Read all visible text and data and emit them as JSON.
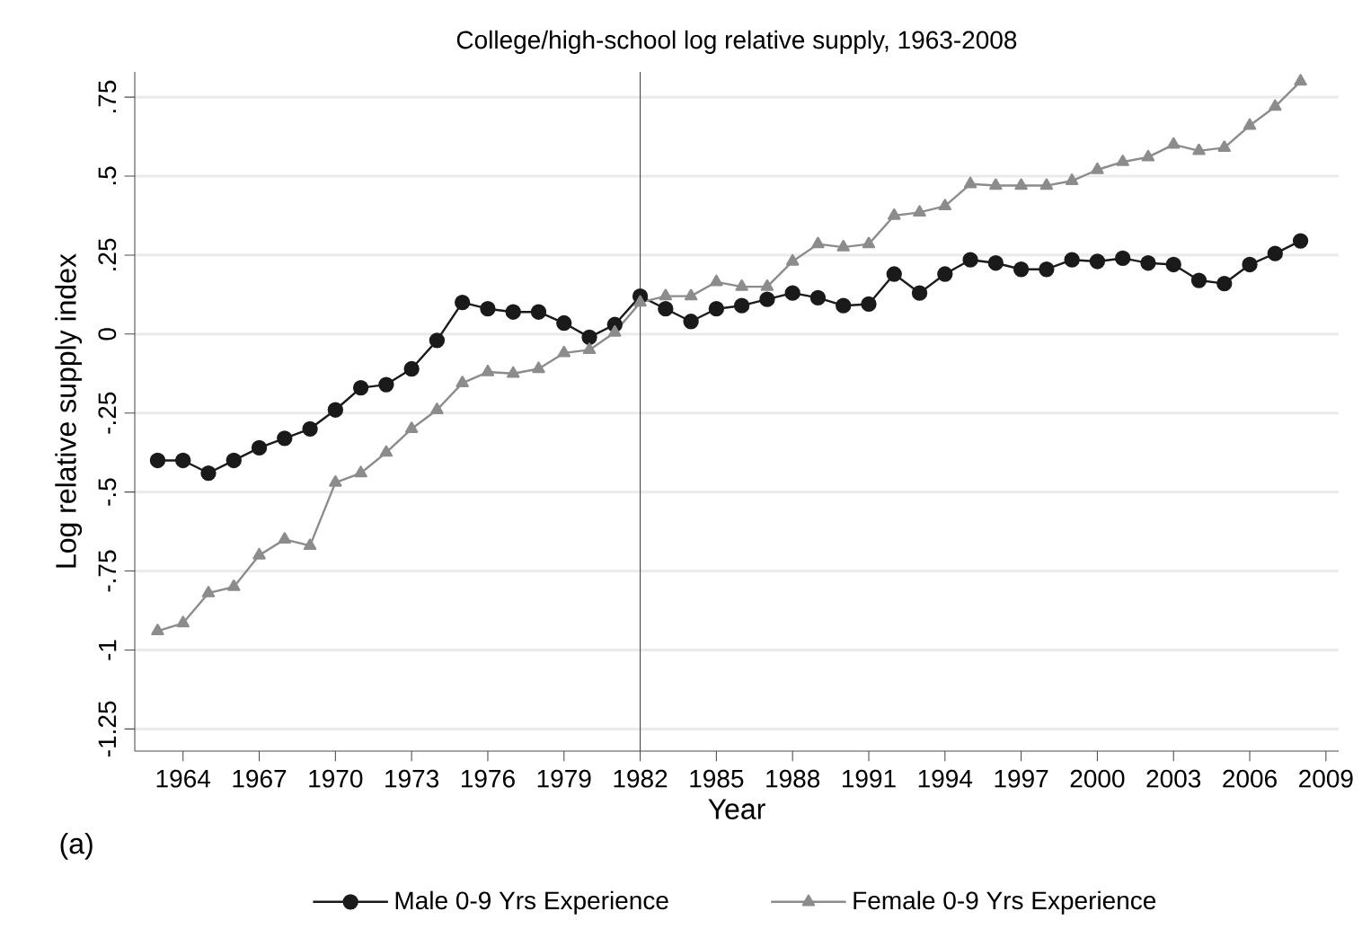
{
  "chart_data": {
    "type": "line",
    "title": "College/high-school log relative supply, 1963-2008",
    "xlabel": "Year",
    "ylabel": "Log relative supply index",
    "annotations": [
      "(a)"
    ],
    "x": [
      1963,
      1964,
      1965,
      1966,
      1967,
      1968,
      1969,
      1970,
      1971,
      1972,
      1973,
      1974,
      1975,
      1976,
      1977,
      1978,
      1979,
      1980,
      1981,
      1982,
      1983,
      1984,
      1985,
      1986,
      1987,
      1988,
      1989,
      1990,
      1991,
      1992,
      1993,
      1994,
      1995,
      1996,
      1997,
      1998,
      1999,
      2000,
      2001,
      2002,
      2003,
      2004,
      2005,
      2006,
      2007,
      2008
    ],
    "series": [
      {
        "name": "Male 0-9 Yrs Experience",
        "color": "#1a1a1a",
        "marker": "circle",
        "values": [
          -0.4,
          -0.4,
          -0.44,
          -0.4,
          -0.36,
          -0.33,
          -0.3,
          -0.24,
          -0.17,
          -0.16,
          -0.11,
          -0.02,
          0.1,
          0.08,
          0.07,
          0.07,
          0.035,
          -0.01,
          0.03,
          0.12,
          0.08,
          0.04,
          0.08,
          0.09,
          0.11,
          0.13,
          0.115,
          0.09,
          0.095,
          0.19,
          0.13,
          0.19,
          0.235,
          0.225,
          0.205,
          0.205,
          0.235,
          0.23,
          0.24,
          0.225,
          0.22,
          0.17,
          0.16,
          0.22,
          0.255,
          0.295
        ]
      },
      {
        "name": "Female 0-9 Yrs Experience",
        "color": "#8c8c8c",
        "marker": "triangle",
        "values": [
          -0.94,
          -0.915,
          -0.82,
          -0.8,
          -0.7,
          -0.65,
          -0.67,
          -0.47,
          -0.44,
          -0.375,
          -0.3,
          -0.24,
          -0.155,
          -0.12,
          -0.125,
          -0.11,
          -0.06,
          -0.05,
          0.005,
          0.1,
          0.12,
          0.12,
          0.165,
          0.15,
          0.15,
          0.23,
          0.285,
          0.275,
          0.285,
          0.375,
          0.385,
          0.405,
          0.475,
          0.47,
          0.47,
          0.47,
          0.485,
          0.52,
          0.545,
          0.56,
          0.6,
          0.58,
          0.59,
          0.66,
          0.72,
          0.8
        ]
      }
    ],
    "xlim": [
      1962.1,
      2009.5
    ],
    "ylim": [
      -1.32,
      0.83
    ],
    "xticks": [
      1964,
      1967,
      1970,
      1973,
      1976,
      1979,
      1982,
      1985,
      1988,
      1991,
      1994,
      1997,
      2000,
      2003,
      2006,
      2009
    ],
    "yticks": [
      {
        "value": -1.25,
        "label": "-1.25"
      },
      {
        "value": -1,
        "label": "-1"
      },
      {
        "value": -0.75,
        "label": "-.75"
      },
      {
        "value": -0.5,
        "label": "-.5"
      },
      {
        "value": -0.25,
        "label": "-.25"
      },
      0,
      {
        "value": 0.25,
        "label": ".25"
      },
      {
        "value": 0.5,
        "label": ".5"
      },
      {
        "value": 0.75,
        "label": ".75"
      }
    ],
    "ref_lines": [
      {
        "axis": "x",
        "value": 1982,
        "color": "#404040"
      }
    ],
    "grid": "y",
    "legend": "bottom",
    "line_style": "solid"
  }
}
